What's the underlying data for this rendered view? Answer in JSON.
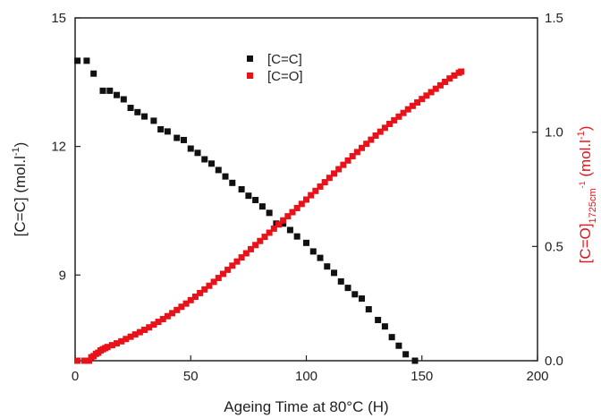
{
  "chart_data": {
    "type": "scatter",
    "xlabel": "Ageing Time at 80°C (H)",
    "ylabel_left": {
      "main": "[C=C] (mol.l",
      "sup": "-1",
      "end": ")"
    },
    "ylabel_right": {
      "main": "[C=O]",
      "sub": "1725cm",
      "subsup": "-1",
      "end": " (mol.l",
      "sup": "-1",
      "end2": ")"
    },
    "xlim": [
      0,
      200
    ],
    "ylim_left": [
      7,
      15
    ],
    "ylim_right": [
      0.0,
      1.5
    ],
    "x_ticks": [
      "0",
      "50",
      "100",
      "150",
      "200"
    ],
    "y_left_ticks": [
      "9",
      "12",
      "15"
    ],
    "y_right_ticks": [
      "0.0",
      "0.5",
      "1.0",
      "1.5"
    ],
    "legend_position": "top-center",
    "series": [
      {
        "name": "[C=C]",
        "color": "#111111",
        "axis": "left",
        "marker": "square",
        "points": [
          [
            1,
            14.0
          ],
          [
            5,
            14.0
          ],
          [
            8,
            13.7
          ],
          [
            12,
            13.3
          ],
          [
            15,
            13.3
          ],
          [
            18,
            13.2
          ],
          [
            21,
            13.1
          ],
          [
            24,
            12.9
          ],
          [
            27,
            12.8
          ],
          [
            30,
            12.7
          ],
          [
            34,
            12.6
          ],
          [
            37,
            12.4
          ],
          [
            40,
            12.35
          ],
          [
            44,
            12.2
          ],
          [
            47,
            12.15
          ],
          [
            50,
            11.95
          ],
          [
            53,
            11.85
          ],
          [
            56,
            11.7
          ],
          [
            59,
            11.6
          ],
          [
            62,
            11.45
          ],
          [
            65,
            11.3
          ],
          [
            68,
            11.15
          ],
          [
            72,
            11.0
          ],
          [
            75,
            10.85
          ],
          [
            78,
            10.75
          ],
          [
            81,
            10.6
          ],
          [
            84,
            10.45
          ],
          [
            87,
            10.2
          ],
          [
            90,
            10.2
          ],
          [
            93,
            10.05
          ],
          [
            96,
            9.9
          ],
          [
            100,
            9.75
          ],
          [
            103,
            9.55
          ],
          [
            106,
            9.4
          ],
          [
            109,
            9.2
          ],
          [
            112,
            9.05
          ],
          [
            115,
            8.85
          ],
          [
            118,
            8.7
          ],
          [
            121,
            8.55
          ],
          [
            124,
            8.45
          ],
          [
            127,
            8.2
          ],
          [
            131,
            7.95
          ],
          [
            134,
            7.8
          ],
          [
            137,
            7.55
          ],
          [
            140,
            7.35
          ],
          [
            143,
            7.15
          ],
          [
            147,
            7.0
          ]
        ]
      },
      {
        "name": "[C=O]",
        "color": "#e8121a",
        "axis": "right",
        "marker": "square",
        "points": [
          [
            1,
            0.0
          ],
          [
            4,
            0.0
          ],
          [
            6,
            0.0
          ],
          [
            7,
            0.015
          ],
          [
            8,
            0.02
          ],
          [
            9,
            0.03
          ],
          [
            10,
            0.035
          ],
          [
            11,
            0.045
          ],
          [
            12,
            0.05
          ],
          [
            13,
            0.055
          ],
          [
            14,
            0.06
          ],
          [
            16,
            0.068
          ],
          [
            18,
            0.076
          ],
          [
            20,
            0.085
          ],
          [
            22,
            0.095
          ],
          [
            24,
            0.105
          ],
          [
            26,
            0.115
          ],
          [
            28,
            0.125
          ],
          [
            30,
            0.135
          ],
          [
            32,
            0.146
          ],
          [
            34,
            0.158
          ],
          [
            36,
            0.17
          ],
          [
            38,
            0.182
          ],
          [
            40,
            0.195
          ],
          [
            42,
            0.208
          ],
          [
            44,
            0.222
          ],
          [
            46,
            0.236
          ],
          [
            48,
            0.25
          ],
          [
            50,
            0.265
          ],
          [
            52,
            0.28
          ],
          [
            54,
            0.296
          ],
          [
            56,
            0.312
          ],
          [
            58,
            0.328
          ],
          [
            60,
            0.345
          ],
          [
            62,
            0.362
          ],
          [
            64,
            0.38
          ],
          [
            66,
            0.398
          ],
          [
            68,
            0.416
          ],
          [
            70,
            0.434
          ],
          [
            72,
            0.452
          ],
          [
            74,
            0.47
          ],
          [
            76,
            0.488
          ],
          [
            78,
            0.506
          ],
          [
            80,
            0.524
          ],
          [
            82,
            0.542
          ],
          [
            84,
            0.56
          ],
          [
            86,
            0.578
          ],
          [
            88,
            0.596
          ],
          [
            90,
            0.614
          ],
          [
            92,
            0.632
          ],
          [
            94,
            0.65
          ],
          [
            96,
            0.668
          ],
          [
            98,
            0.686
          ],
          [
            100,
            0.705
          ],
          [
            102,
            0.724
          ],
          [
            104,
            0.743
          ],
          [
            106,
            0.762
          ],
          [
            108,
            0.781
          ],
          [
            110,
            0.8
          ],
          [
            112,
            0.819
          ],
          [
            114,
            0.838
          ],
          [
            116,
            0.857
          ],
          [
            118,
            0.876
          ],
          [
            120,
            0.895
          ],
          [
            122,
            0.913
          ],
          [
            124,
            0.931
          ],
          [
            126,
            0.949
          ],
          [
            128,
            0.967
          ],
          [
            130,
            0.985
          ],
          [
            132,
            1.002
          ],
          [
            134,
            1.019
          ],
          [
            136,
            1.036
          ],
          [
            138,
            1.052
          ],
          [
            140,
            1.068
          ],
          [
            142,
            1.084
          ],
          [
            144,
            1.1
          ],
          [
            146,
            1.115
          ],
          [
            148,
            1.13
          ],
          [
            150,
            1.145
          ],
          [
            152,
            1.16
          ],
          [
            154,
            1.175
          ],
          [
            156,
            1.19
          ],
          [
            158,
            1.205
          ],
          [
            160,
            1.22
          ],
          [
            162,
            1.235
          ],
          [
            164,
            1.248
          ],
          [
            166,
            1.26
          ],
          [
            167,
            1.265
          ]
        ]
      }
    ]
  }
}
